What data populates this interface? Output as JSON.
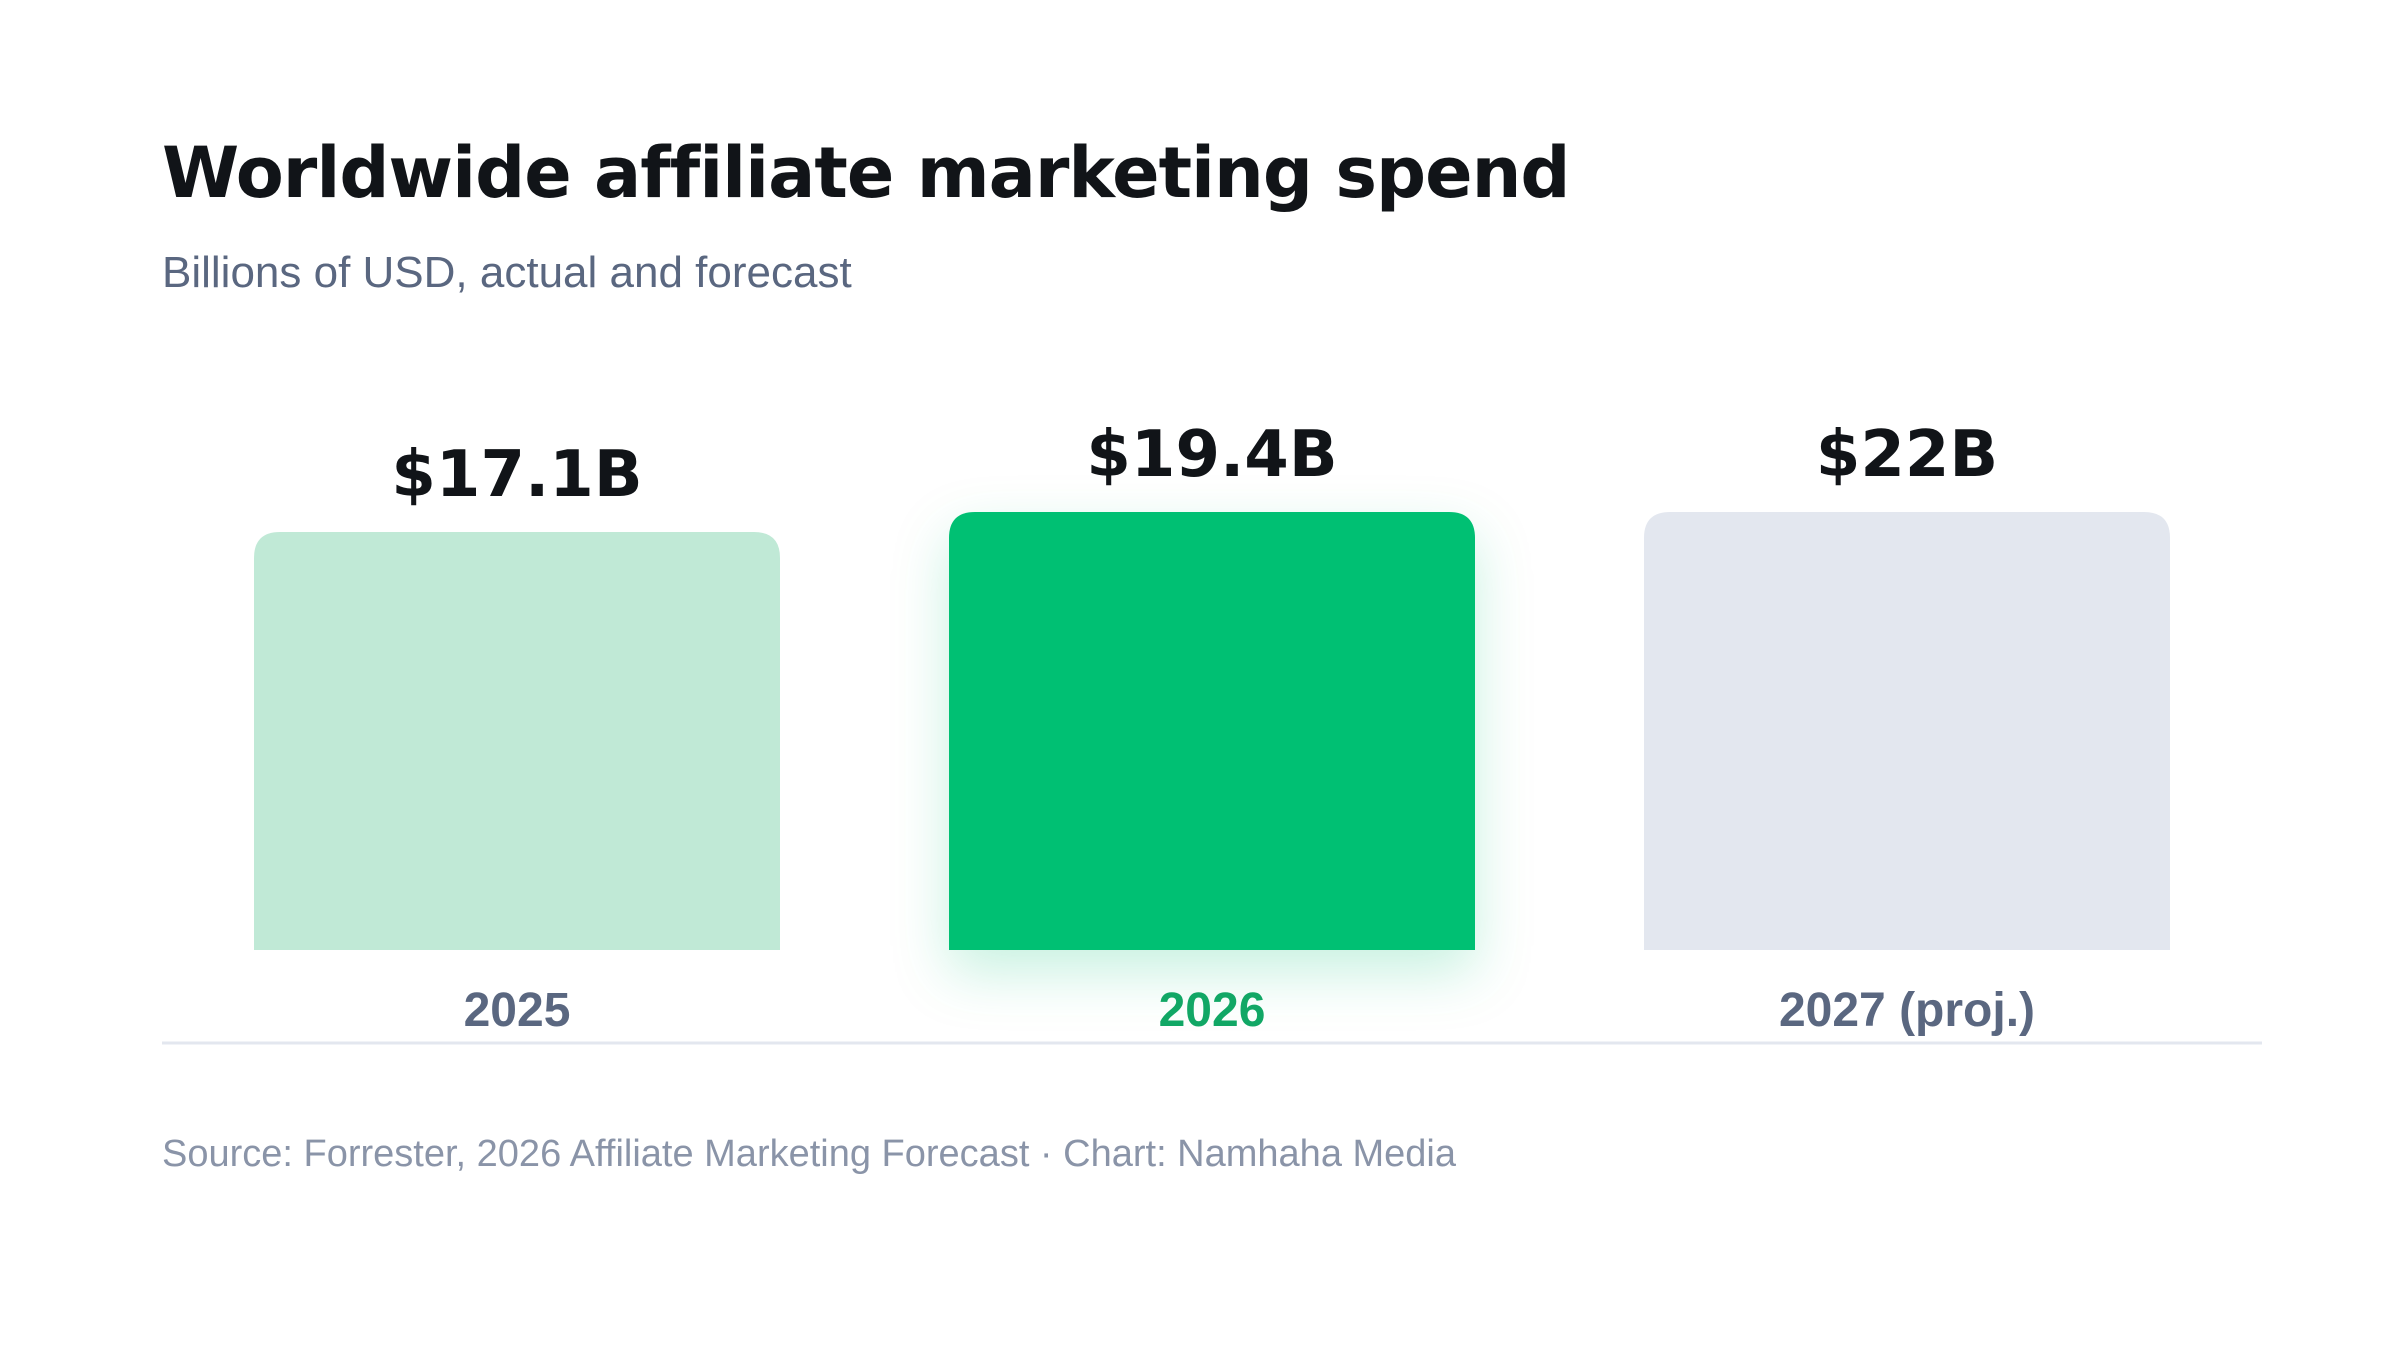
{
  "title": "Worldwide affiliate marketing spend",
  "subtitle": "Billions of USD, actual and forecast",
  "source": "Source: Forrester, 2026 Affiliate Marketing Forecast · Chart: Namhaha Media",
  "colors": {
    "bar_2025": "#c0e9d6",
    "bar_2026": "#00c073",
    "bar_2027": "#e3e7ef",
    "label_highlight": "#11a765",
    "label_default": "#5a6780",
    "value_text": "#111418",
    "baseline": "#e3e7ef"
  },
  "chart_data": {
    "type": "bar",
    "title": "Worldwide affiliate marketing spend",
    "subtitle": "Billions of USD, actual and forecast",
    "categories": [
      "2025",
      "2026",
      "2027 (proj.)"
    ],
    "values": [
      17.1,
      19.4,
      22
    ],
    "value_labels": [
      "$17.1B",
      "$19.4B",
      "$22B"
    ],
    "highlight": "2026",
    "unit": "USD billions",
    "grid": false,
    "legend": "none"
  }
}
